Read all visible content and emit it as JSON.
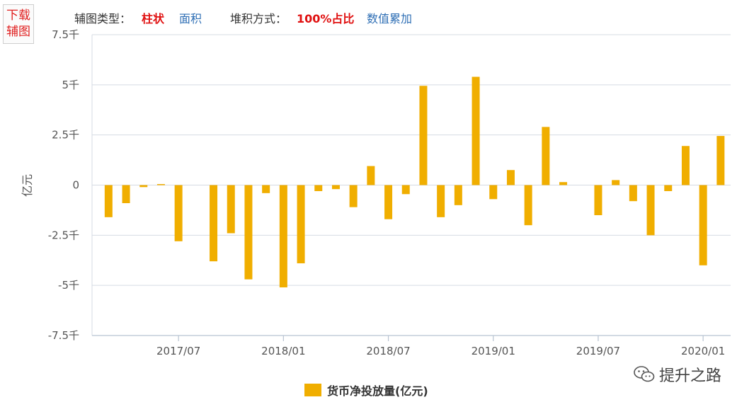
{
  "download_button": {
    "line1": "下载",
    "line2": "辅图"
  },
  "toolbar": {
    "chart_type_label": "辅图类型：",
    "chart_type_active": "柱状",
    "chart_type_other": "面积",
    "stack_label": "堆积方式：",
    "stack_active": "100%占比",
    "stack_other": "数值累加"
  },
  "watermark": {
    "text": "提升之路",
    "icon": "wechat-icon"
  },
  "colors": {
    "bar": "#F0AE00",
    "grid": "#d5dbe3",
    "axis": "#b8c4d2",
    "text": "#555555"
  },
  "chart_data": {
    "type": "bar",
    "title": "",
    "xlabel": "",
    "ylabel": "亿元",
    "y_unit_label": "亿元",
    "ylim": [
      -7500,
      7500
    ],
    "yticks": [
      7500,
      5000,
      2500,
      0,
      -2500,
      -5000,
      -7500
    ],
    "ytick_labels": [
      "7.5千",
      "5千",
      "2.5千",
      "0",
      "-2.5千",
      "-5千",
      "-7.5千"
    ],
    "x_tick_labels": [
      {
        "label": "2017/07",
        "index": 4
      },
      {
        "label": "2018/01",
        "index": 10
      },
      {
        "label": "2018/07",
        "index": 16
      },
      {
        "label": "2019/01",
        "index": 22
      },
      {
        "label": "2019/07",
        "index": 28
      },
      {
        "label": "2020/01",
        "index": 34
      }
    ],
    "grid": true,
    "legend_position": "bottom",
    "series": [
      {
        "name": "货币净投放量(亿元)",
        "color": "#F0AE00",
        "categories": [
          "2017/03",
          "2017/04",
          "2017/05",
          "2017/06",
          "2017/07",
          "2017/08",
          "2017/09",
          "2017/10",
          "2017/11",
          "2017/12",
          "2018/01",
          "2018/02",
          "2018/03",
          "2018/04",
          "2018/05",
          "2018/06",
          "2018/07",
          "2018/08",
          "2018/09",
          "2018/10",
          "2018/11",
          "2018/12",
          "2019/01",
          "2019/02",
          "2019/03",
          "2019/04",
          "2019/05",
          "2019/06",
          "2019/07",
          "2019/08",
          "2019/09",
          "2019/10",
          "2019/11",
          "2019/12",
          "2020/01",
          "2020/02"
        ],
        "values": [
          -1600,
          -900,
          -100,
          50,
          -2800,
          null,
          -3800,
          -2400,
          -4700,
          -400,
          -5100,
          -3900,
          -300,
          -200,
          -1100,
          950,
          -1700,
          -450,
          4950,
          -1600,
          -1000,
          5400,
          -700,
          750,
          -2000,
          2900,
          150,
          null,
          -1500,
          250,
          -800,
          -2500,
          -300,
          1950,
          -4000,
          2450
        ]
      }
    ]
  }
}
